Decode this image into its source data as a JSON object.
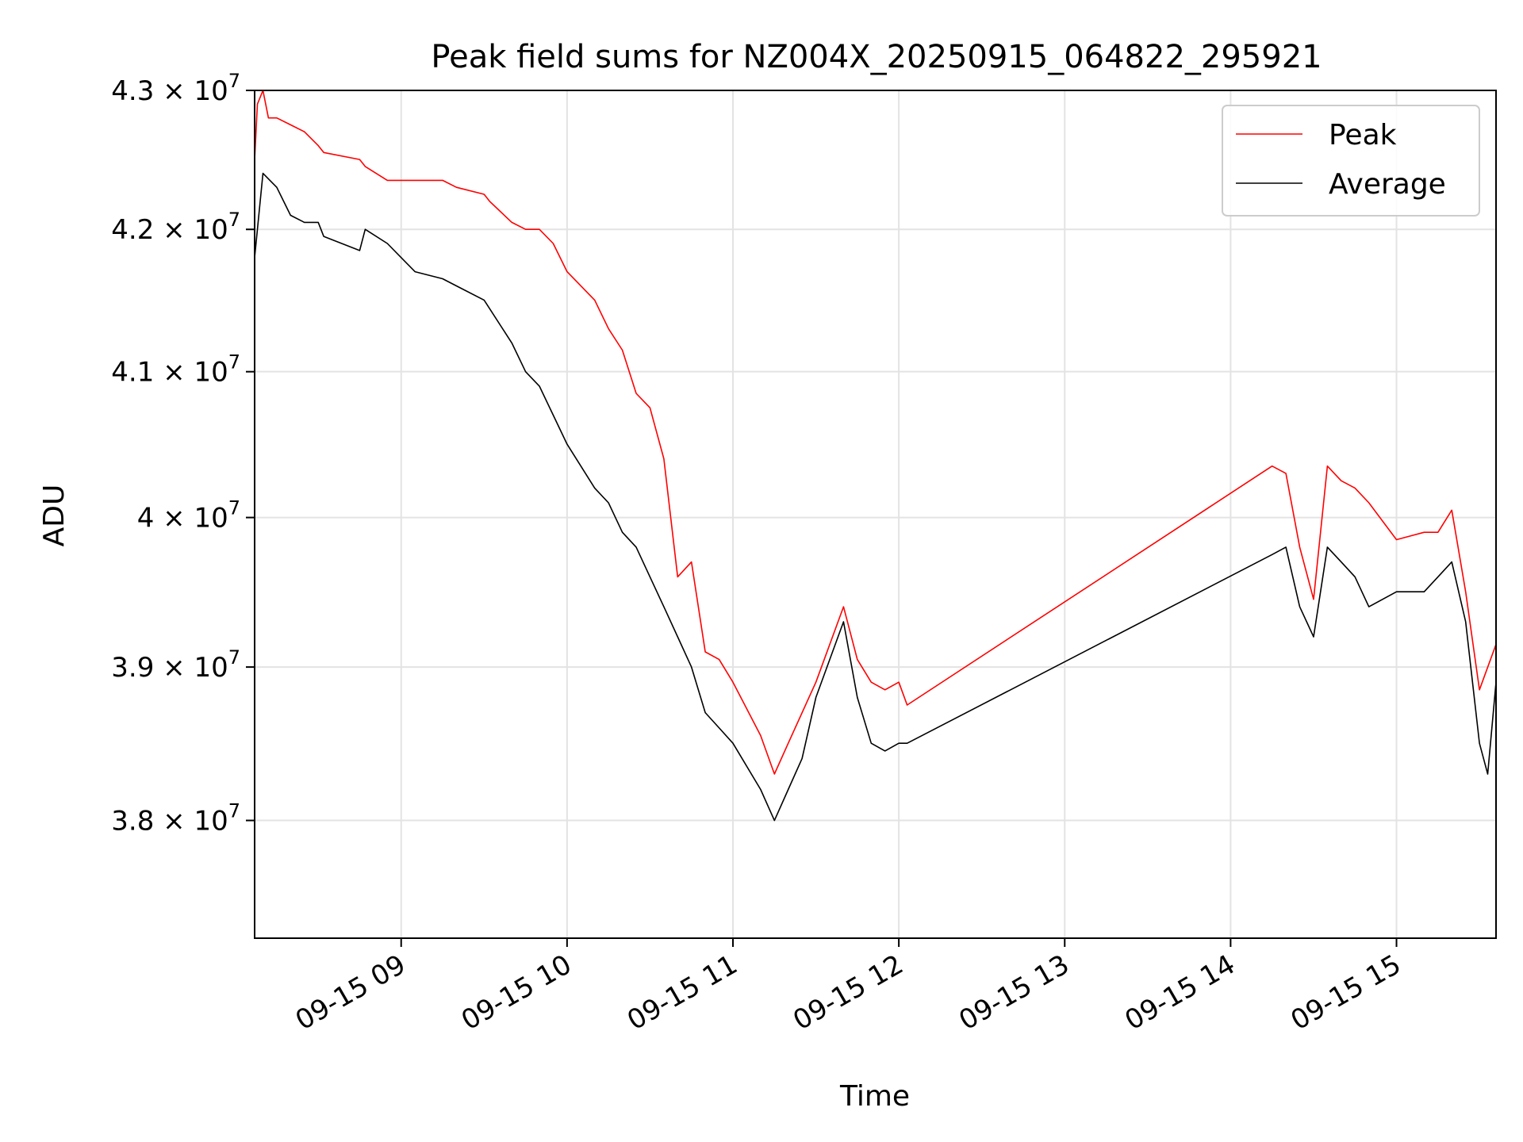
{
  "chart_data": {
    "type": "line",
    "title": "Peak field sums for NZ004X_20250915_064822_295921",
    "xlabel": "Time",
    "ylabel": "ADU",
    "x_ticks": [
      "09-15 09",
      "09-15 10",
      "09-15 11",
      "09-15 12",
      "09-15 13",
      "09-15 14",
      "09-15 15"
    ],
    "y_ticks": [
      {
        "value": 38000000,
        "mantissa": "3.8",
        "exponent": "7"
      },
      {
        "value": 39000000,
        "mantissa": "3.9",
        "exponent": "7"
      },
      {
        "value": 40000000,
        "mantissa": "4",
        "exponent": "7"
      },
      {
        "value": 41000000,
        "mantissa": "4.1",
        "exponent": "7"
      },
      {
        "value": 42000000,
        "mantissa": "4.2",
        "exponent": "7"
      },
      {
        "value": 43000000,
        "mantissa": "4.3",
        "exponent": "7"
      }
    ],
    "y_scale": "log",
    "xlim": [
      "2025-09-15 08:07",
      "2025-09-15 15:36"
    ],
    "ylim": [
      37250000,
      43000000
    ],
    "grid": true,
    "legend_position": "top-right",
    "series": [
      {
        "name": "Peak",
        "color": "#ff0000",
        "x": [
          "2025-09-15 08:07",
          "2025-09-15 08:08",
          "2025-09-15 08:10",
          "2025-09-15 08:12",
          "2025-09-15 08:15",
          "2025-09-15 08:20",
          "2025-09-15 08:25",
          "2025-09-15 08:30",
          "2025-09-15 08:32",
          "2025-09-15 08:45",
          "2025-09-15 08:47",
          "2025-09-15 08:55",
          "2025-09-15 09:05",
          "2025-09-15 09:15",
          "2025-09-15 09:20",
          "2025-09-15 09:30",
          "2025-09-15 09:32",
          "2025-09-15 09:40",
          "2025-09-15 09:45",
          "2025-09-15 09:50",
          "2025-09-15 09:55",
          "2025-09-15 10:00",
          "2025-09-15 10:10",
          "2025-09-15 10:15",
          "2025-09-15 10:20",
          "2025-09-15 10:25",
          "2025-09-15 10:30",
          "2025-09-15 10:35",
          "2025-09-15 10:40",
          "2025-09-15 10:45",
          "2025-09-15 10:50",
          "2025-09-15 10:55",
          "2025-09-15 11:00",
          "2025-09-15 11:10",
          "2025-09-15 11:15",
          "2025-09-15 11:20",
          "2025-09-15 11:30",
          "2025-09-15 11:40",
          "2025-09-15 11:45",
          "2025-09-15 11:50",
          "2025-09-15 11:55",
          "2025-09-15 12:00",
          "2025-09-15 12:03",
          "2025-09-15 14:15",
          "2025-09-15 14:20",
          "2025-09-15 14:25",
          "2025-09-15 14:30",
          "2025-09-15 14:35",
          "2025-09-15 14:40",
          "2025-09-15 14:45",
          "2025-09-15 14:50",
          "2025-09-15 15:00",
          "2025-09-15 15:10",
          "2025-09-15 15:15",
          "2025-09-15 15:20",
          "2025-09-15 15:25",
          "2025-09-15 15:30",
          "2025-09-15 15:36"
        ],
        "values": [
          42500000,
          42900000,
          43000000,
          42800000,
          42800000,
          42750000,
          42700000,
          42600000,
          42550000,
          42500000,
          42450000,
          42350000,
          42350000,
          42350000,
          42300000,
          42250000,
          42200000,
          42050000,
          42000000,
          42000000,
          41900000,
          41700000,
          41500000,
          41300000,
          41150000,
          40850000,
          40750000,
          40400000,
          39600000,
          39700000,
          39100000,
          39050000,
          38900000,
          38550000,
          38300000,
          38500000,
          38900000,
          39400000,
          39050000,
          38900000,
          38850000,
          38900000,
          38750000,
          40350000,
          40300000,
          39800000,
          39450000,
          40350000,
          40250000,
          40200000,
          40100000,
          39850000,
          39900000,
          39900000,
          40050000,
          39500000,
          38850000,
          39150000
        ]
      },
      {
        "name": "Average",
        "color": "#000000",
        "x": [
          "2025-09-15 08:07",
          "2025-09-15 08:10",
          "2025-09-15 08:15",
          "2025-09-15 08:20",
          "2025-09-15 08:25",
          "2025-09-15 08:30",
          "2025-09-15 08:32",
          "2025-09-15 08:45",
          "2025-09-15 08:47",
          "2025-09-15 08:55",
          "2025-09-15 09:05",
          "2025-09-15 09:15",
          "2025-09-15 09:20",
          "2025-09-15 09:30",
          "2025-09-15 09:40",
          "2025-09-15 09:45",
          "2025-09-15 09:50",
          "2025-09-15 09:55",
          "2025-09-15 10:00",
          "2025-09-15 10:10",
          "2025-09-15 10:15",
          "2025-09-15 10:20",
          "2025-09-15 10:25",
          "2025-09-15 10:30",
          "2025-09-15 10:35",
          "2025-09-15 10:40",
          "2025-09-15 10:45",
          "2025-09-15 10:50",
          "2025-09-15 10:55",
          "2025-09-15 11:00",
          "2025-09-15 11:10",
          "2025-09-15 11:15",
          "2025-09-15 11:20",
          "2025-09-15 11:25",
          "2025-09-15 11:30",
          "2025-09-15 11:40",
          "2025-09-15 11:45",
          "2025-09-15 11:50",
          "2025-09-15 11:55",
          "2025-09-15 12:00",
          "2025-09-15 12:03",
          "2025-09-15 14:15",
          "2025-09-15 14:20",
          "2025-09-15 14:25",
          "2025-09-15 14:30",
          "2025-09-15 14:35",
          "2025-09-15 14:40",
          "2025-09-15 14:45",
          "2025-09-15 14:50",
          "2025-09-15 15:00",
          "2025-09-15 15:10",
          "2025-09-15 15:15",
          "2025-09-15 15:20",
          "2025-09-15 15:25",
          "2025-09-15 15:30",
          "2025-09-15 15:33",
          "2025-09-15 15:36"
        ],
        "values": [
          41800000,
          42400000,
          42300000,
          42100000,
          42050000,
          42050000,
          41950000,
          41850000,
          42000000,
          41900000,
          41700000,
          41650000,
          41600000,
          41500000,
          41200000,
          41000000,
          40900000,
          40700000,
          40500000,
          40200000,
          40100000,
          39900000,
          39800000,
          39600000,
          39400000,
          39200000,
          39000000,
          38700000,
          38600000,
          38500000,
          38200000,
          38000000,
          38200000,
          38400000,
          38800000,
          39300000,
          38800000,
          38500000,
          38450000,
          38500000,
          38500000,
          39750000,
          39800000,
          39400000,
          39200000,
          39800000,
          39700000,
          39600000,
          39400000,
          39500000,
          39500000,
          39600000,
          39700000,
          39300000,
          38500000,
          38300000,
          38900000
        ]
      }
    ]
  }
}
